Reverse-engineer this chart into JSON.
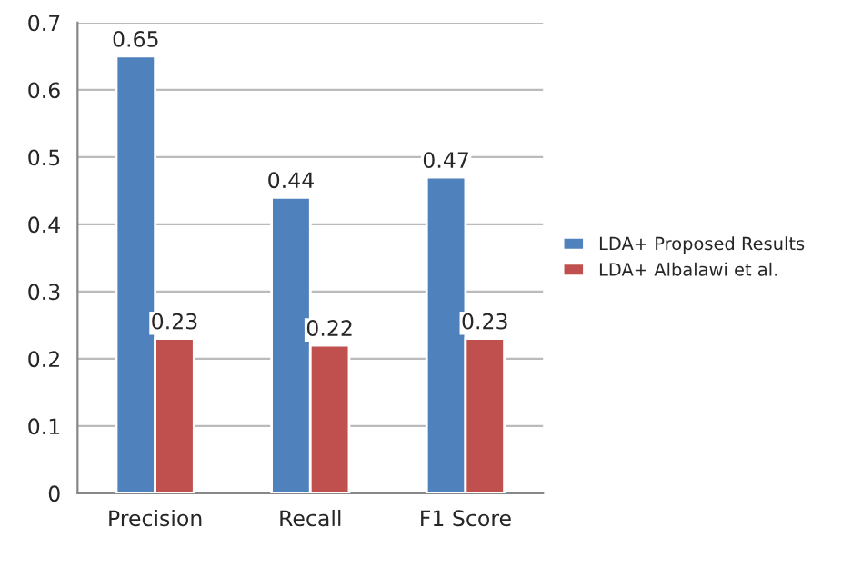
{
  "chart_data": {
    "type": "bar",
    "categories": [
      "Precision",
      "Recall",
      "F1 Score"
    ],
    "series": [
      {
        "name": "LDA+ Proposed Results",
        "color": "#4f81bd",
        "values": [
          0.65,
          0.44,
          0.47
        ]
      },
      {
        "name": "LDA+ Albalawi et al.",
        "color": "#c0504d",
        "values": [
          0.23,
          0.22,
          0.23
        ]
      }
    ],
    "ylim": [
      0,
      0.7
    ],
    "yticks": [
      0,
      0.1,
      0.2,
      0.3,
      0.4,
      0.5,
      0.6,
      0.7
    ],
    "grid": "y",
    "legend": "right",
    "data_labels": true
  }
}
